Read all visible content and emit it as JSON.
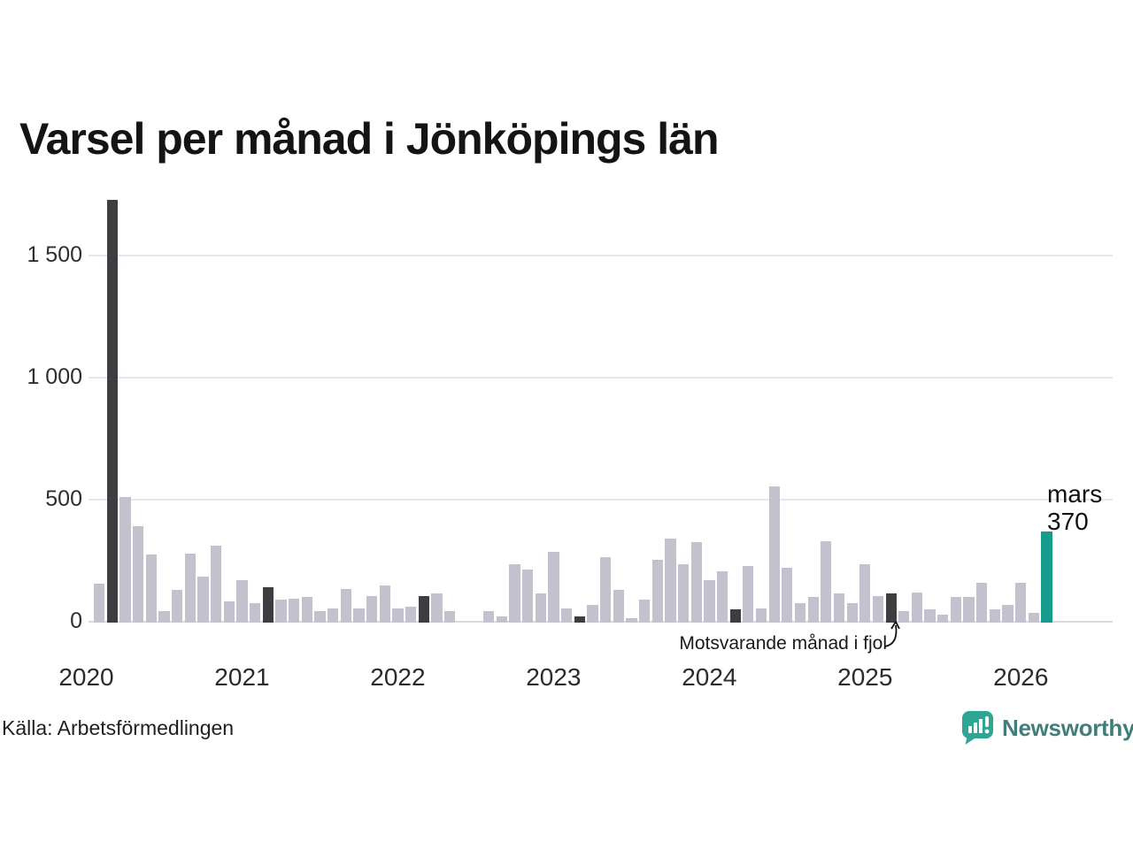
{
  "title": "Varsel per månad i Jönköpings län",
  "source": "Källa: Arbetsförmedlingen",
  "annotation": "Motsvarande månad i fjol",
  "current_point_label": {
    "month": "mars",
    "value": "370"
  },
  "brand": {
    "name": "Newsworthy"
  },
  "colors": {
    "bar_normal": "#c4c1ce",
    "bar_lastyear": "#3e3d41",
    "bar_current": "#169b8d",
    "gridline": "#e8e6ec",
    "logo_teal": "#2fa695",
    "brand_text": "#417e7b"
  },
  "chart_data": {
    "type": "bar",
    "title": "Varsel per månad i Jönköpings län",
    "xlabel": "",
    "ylabel": "",
    "ylim": [
      0,
      1750
    ],
    "grid": true,
    "yticks": [
      {
        "value": 0,
        "label": "0"
      },
      {
        "value": 500,
        "label": "500"
      },
      {
        "value": 1000,
        "label": "1 000"
      },
      {
        "value": 1500,
        "label": "1 500"
      }
    ],
    "x_year_ticks": [
      "2020",
      "2021",
      "2022",
      "2023",
      "2024",
      "2025",
      "2026"
    ],
    "highlight_note": "Dark bars = Motsvarande månad i fjol (March each year); teal bar = current month (mars 2026, 370)",
    "series": [
      {
        "month": "2020-02",
        "value": 155,
        "kind": "normal"
      },
      {
        "month": "2020-03",
        "value": 1730,
        "kind": "lastyear"
      },
      {
        "month": "2020-04",
        "value": 510,
        "kind": "normal"
      },
      {
        "month": "2020-05",
        "value": 390,
        "kind": "normal"
      },
      {
        "month": "2020-06",
        "value": 275,
        "kind": "normal"
      },
      {
        "month": "2020-07",
        "value": 45,
        "kind": "normal"
      },
      {
        "month": "2020-08",
        "value": 130,
        "kind": "normal"
      },
      {
        "month": "2020-09",
        "value": 280,
        "kind": "normal"
      },
      {
        "month": "2020-10",
        "value": 185,
        "kind": "normal"
      },
      {
        "month": "2020-11",
        "value": 310,
        "kind": "normal"
      },
      {
        "month": "2020-12",
        "value": 85,
        "kind": "normal"
      },
      {
        "month": "2021-01",
        "value": 170,
        "kind": "normal"
      },
      {
        "month": "2021-02",
        "value": 75,
        "kind": "normal"
      },
      {
        "month": "2021-03",
        "value": 140,
        "kind": "lastyear"
      },
      {
        "month": "2021-04",
        "value": 90,
        "kind": "normal"
      },
      {
        "month": "2021-05",
        "value": 95,
        "kind": "normal"
      },
      {
        "month": "2021-06",
        "value": 100,
        "kind": "normal"
      },
      {
        "month": "2021-07",
        "value": 45,
        "kind": "normal"
      },
      {
        "month": "2021-08",
        "value": 55,
        "kind": "normal"
      },
      {
        "month": "2021-09",
        "value": 135,
        "kind": "normal"
      },
      {
        "month": "2021-10",
        "value": 55,
        "kind": "normal"
      },
      {
        "month": "2021-11",
        "value": 105,
        "kind": "normal"
      },
      {
        "month": "2021-12",
        "value": 150,
        "kind": "normal"
      },
      {
        "month": "2022-01",
        "value": 55,
        "kind": "normal"
      },
      {
        "month": "2022-02",
        "value": 60,
        "kind": "normal"
      },
      {
        "month": "2022-03",
        "value": 105,
        "kind": "lastyear"
      },
      {
        "month": "2022-04",
        "value": 115,
        "kind": "normal"
      },
      {
        "month": "2022-05",
        "value": 45,
        "kind": "normal"
      },
      {
        "month": "2022-06",
        "value": 0,
        "kind": "normal"
      },
      {
        "month": "2022-07",
        "value": 0,
        "kind": "normal"
      },
      {
        "month": "2022-08",
        "value": 45,
        "kind": "normal"
      },
      {
        "month": "2022-09",
        "value": 20,
        "kind": "normal"
      },
      {
        "month": "2022-10",
        "value": 235,
        "kind": "normal"
      },
      {
        "month": "2022-11",
        "value": 215,
        "kind": "normal"
      },
      {
        "month": "2022-12",
        "value": 115,
        "kind": "normal"
      },
      {
        "month": "2023-01",
        "value": 285,
        "kind": "normal"
      },
      {
        "month": "2023-02",
        "value": 55,
        "kind": "normal"
      },
      {
        "month": "2023-03",
        "value": 20,
        "kind": "lastyear"
      },
      {
        "month": "2023-04",
        "value": 70,
        "kind": "normal"
      },
      {
        "month": "2023-05",
        "value": 265,
        "kind": "normal"
      },
      {
        "month": "2023-06",
        "value": 130,
        "kind": "normal"
      },
      {
        "month": "2023-07",
        "value": 15,
        "kind": "normal"
      },
      {
        "month": "2023-08",
        "value": 90,
        "kind": "normal"
      },
      {
        "month": "2023-09",
        "value": 255,
        "kind": "normal"
      },
      {
        "month": "2023-10",
        "value": 340,
        "kind": "normal"
      },
      {
        "month": "2023-11",
        "value": 235,
        "kind": "normal"
      },
      {
        "month": "2023-12",
        "value": 325,
        "kind": "normal"
      },
      {
        "month": "2024-01",
        "value": 170,
        "kind": "normal"
      },
      {
        "month": "2024-02",
        "value": 205,
        "kind": "normal"
      },
      {
        "month": "2024-03",
        "value": 50,
        "kind": "lastyear"
      },
      {
        "month": "2024-04",
        "value": 230,
        "kind": "normal"
      },
      {
        "month": "2024-05",
        "value": 55,
        "kind": "normal"
      },
      {
        "month": "2024-06",
        "value": 555,
        "kind": "normal"
      },
      {
        "month": "2024-07",
        "value": 220,
        "kind": "normal"
      },
      {
        "month": "2024-08",
        "value": 75,
        "kind": "normal"
      },
      {
        "month": "2024-09",
        "value": 100,
        "kind": "normal"
      },
      {
        "month": "2024-10",
        "value": 330,
        "kind": "normal"
      },
      {
        "month": "2024-11",
        "value": 115,
        "kind": "normal"
      },
      {
        "month": "2024-12",
        "value": 75,
        "kind": "normal"
      },
      {
        "month": "2025-01",
        "value": 235,
        "kind": "normal"
      },
      {
        "month": "2025-02",
        "value": 105,
        "kind": "normal"
      },
      {
        "month": "2025-03",
        "value": 115,
        "kind": "lastyear"
      },
      {
        "month": "2025-04",
        "value": 45,
        "kind": "normal"
      },
      {
        "month": "2025-05",
        "value": 120,
        "kind": "normal"
      },
      {
        "month": "2025-06",
        "value": 50,
        "kind": "normal"
      },
      {
        "month": "2025-07",
        "value": 30,
        "kind": "normal"
      },
      {
        "month": "2025-08",
        "value": 100,
        "kind": "normal"
      },
      {
        "month": "2025-09",
        "value": 100,
        "kind": "normal"
      },
      {
        "month": "2025-10",
        "value": 160,
        "kind": "normal"
      },
      {
        "month": "2025-11",
        "value": 50,
        "kind": "normal"
      },
      {
        "month": "2025-12",
        "value": 70,
        "kind": "normal"
      },
      {
        "month": "2026-01",
        "value": 160,
        "kind": "normal"
      },
      {
        "month": "2026-02",
        "value": 35,
        "kind": "normal"
      },
      {
        "month": "2026-03",
        "value": 370,
        "kind": "current"
      }
    ]
  }
}
